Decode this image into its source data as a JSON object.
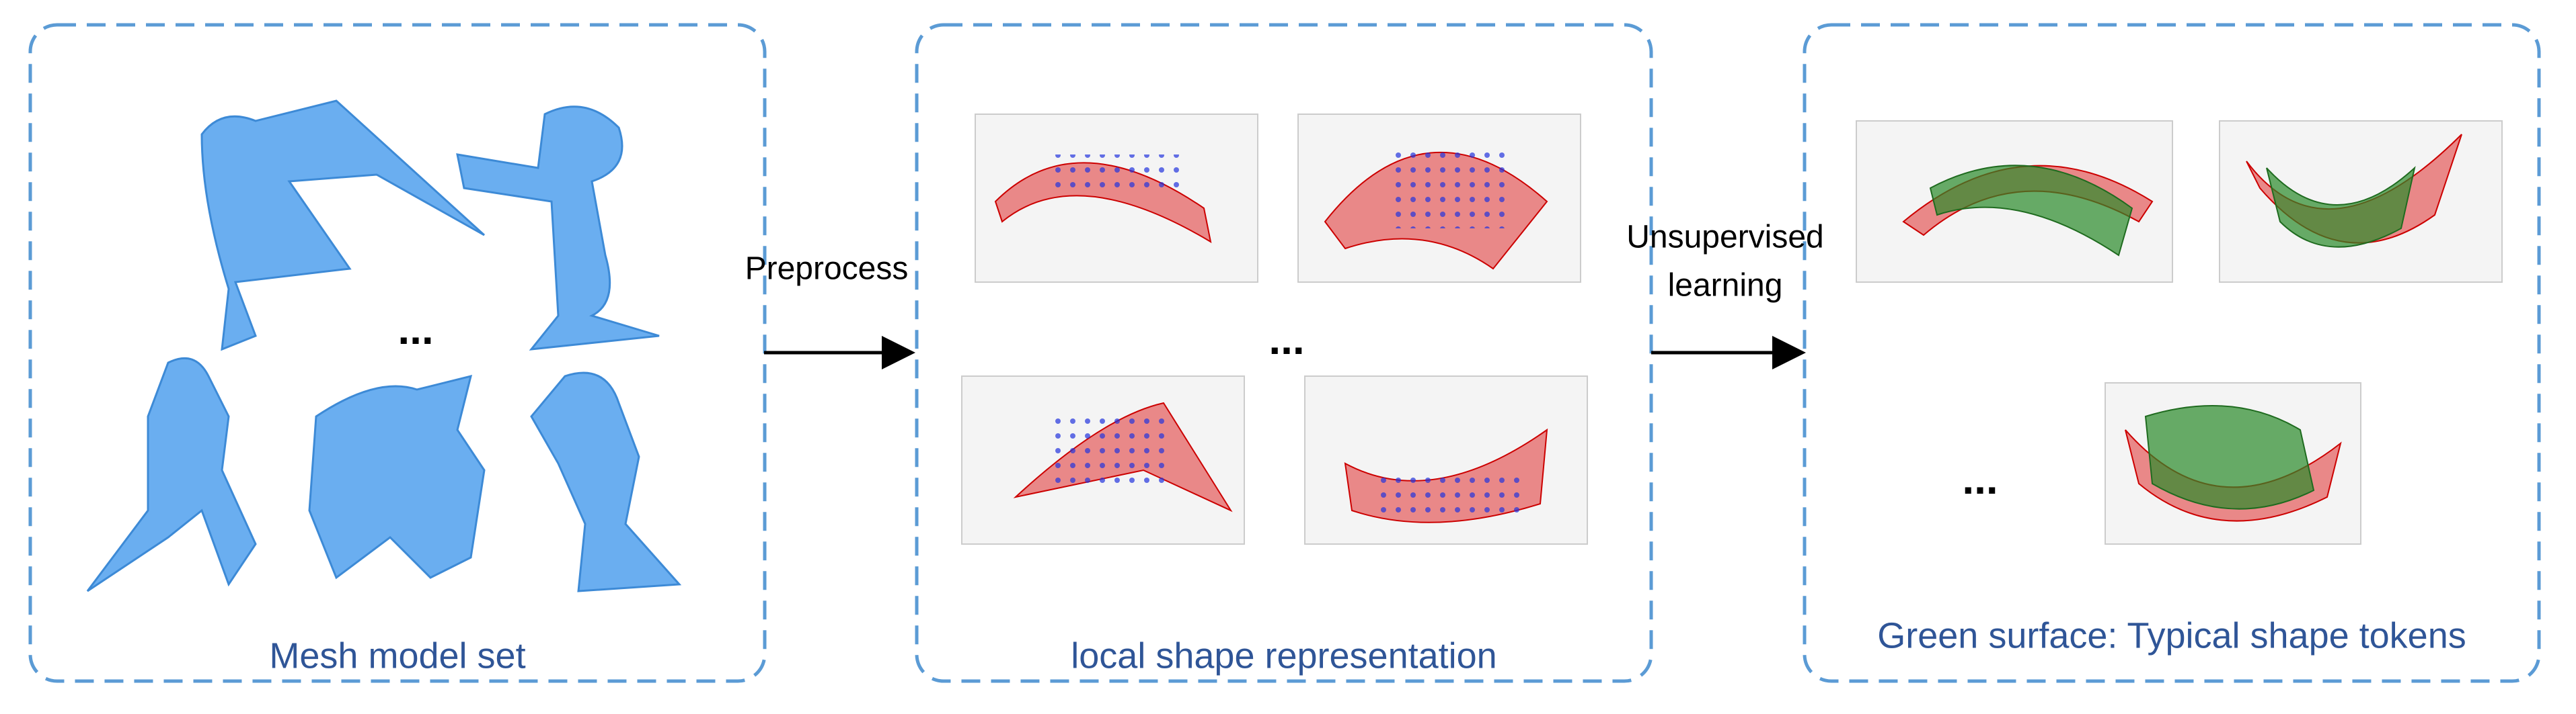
{
  "panels": [
    {
      "caption": "Mesh model set",
      "ellipsis": "..."
    },
    {
      "caption": "local shape representation",
      "ellipsis": "..."
    },
    {
      "caption": "Green surface: Typical shape tokens",
      "ellipsis": "..."
    }
  ],
  "arrows": [
    {
      "label": [
        "Preprocess"
      ]
    },
    {
      "label": [
        "Unsupervised",
        "learning"
      ]
    }
  ]
}
